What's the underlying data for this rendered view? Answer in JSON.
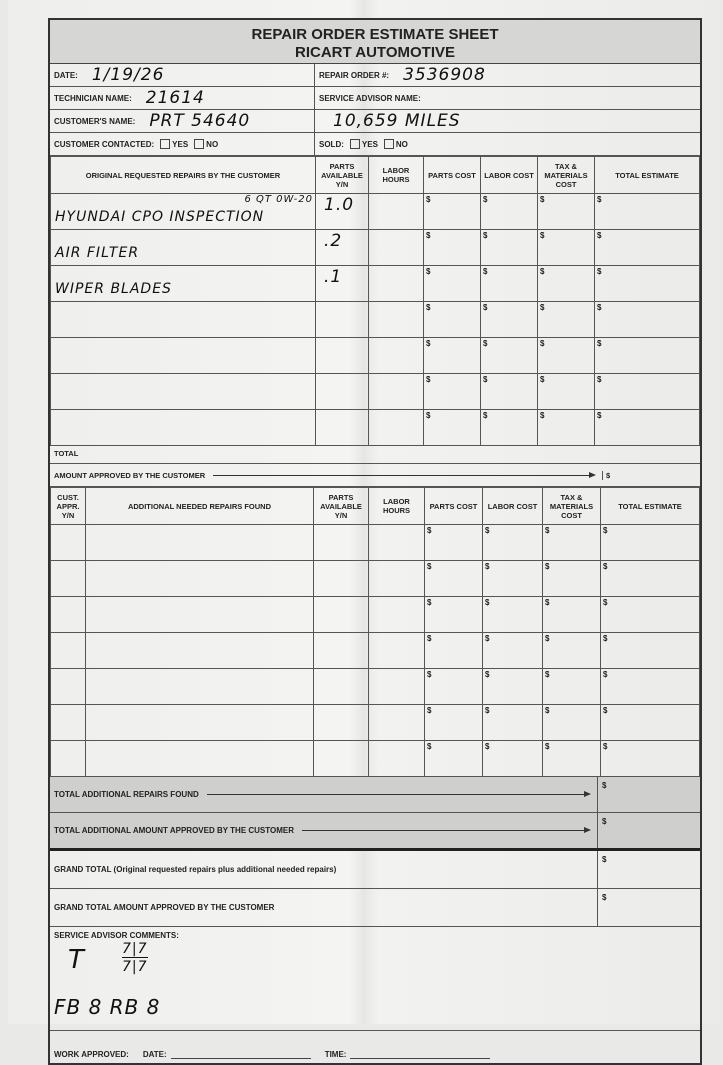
{
  "header": {
    "title": "REPAIR ORDER ESTIMATE SHEET",
    "company": "RICART AUTOMOTIVE"
  },
  "info": {
    "date_label": "DATE:",
    "date_value": "1/19/26",
    "repair_order_label": "REPAIR ORDER #:",
    "repair_order_value": "3536908",
    "technician_label": "TECHNICIAN NAME:",
    "technician_value": "21614",
    "service_advisor_label": "SERVICE ADVISOR NAME:",
    "customer_label": "CUSTOMER'S NAME:",
    "customer_value": "PRT 54640",
    "mileage_value": "10,659 MILES",
    "contacted_label": "CUSTOMER CONTACTED:",
    "yes": "YES",
    "no": "NO",
    "sold_label": "SOLD:"
  },
  "currency_symbol": "$",
  "original": {
    "headers": [
      "ORIGINAL REQUESTED REPAIRS BY THE CUSTOMER",
      "PARTS AVAILABLE Y/N",
      "LABOR HOURS",
      "PARTS COST",
      "LABOR COST",
      "TAX & MATERIALS COST",
      "TOTAL ESTIMATE"
    ],
    "rows": [
      {
        "repair": "HYUNDAI CPO INSPECTION",
        "note": "6 QT 0W-20",
        "parts": "1.0"
      },
      {
        "repair": "AIR FILTER",
        "note": "",
        "parts": ".2"
      },
      {
        "repair": "WIPER BLADES",
        "note": "",
        "parts": ".1"
      },
      {
        "repair": "",
        "note": "",
        "parts": ""
      },
      {
        "repair": "",
        "note": "",
        "parts": ""
      },
      {
        "repair": "",
        "note": "",
        "parts": ""
      },
      {
        "repair": "",
        "note": "",
        "parts": ""
      }
    ],
    "total_label": "TOTAL",
    "approved_label": "AMOUNT APPROVED BY THE CUSTOMER"
  },
  "additional": {
    "headers": [
      "CUST. APPR. Y/N",
      "ADDITIONAL NEEDED REPAIRS FOUND",
      "PARTS AVAILABLE Y/N",
      "LABOR HOURS",
      "PARTS COST",
      "LABOR COST",
      "TAX & MATERIALS COST",
      "TOTAL ESTIMATE"
    ],
    "row_count": 7,
    "total_found_label": "TOTAL ADDITIONAL REPAIRS FOUND",
    "total_approved_label": "TOTAL ADDITIONAL AMOUNT APPROVED BY THE CUSTOMER"
  },
  "grand_total_label": "GRAND TOTAL (Original requested repairs plus additional needed repairs)",
  "grand_approved_label": "GRAND TOTAL AMOUNT APPROVED BY THE CUSTOMER",
  "comments": {
    "label": "SERVICE ADVISOR COMMENTS:",
    "line1": "T",
    "tire_top": "7|7",
    "tire_bottom": "7|7",
    "line2": "FB 8   RB 8"
  },
  "work": {
    "approved_label": "WORK APPROVED:",
    "date_label": "DATE:",
    "time_label": "TIME:"
  }
}
